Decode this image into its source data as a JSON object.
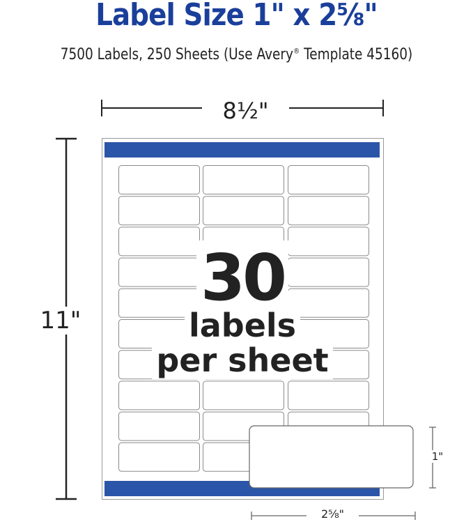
{
  "title": "Label Size 1\" x 2⅝\"",
  "subtitle": {
    "text": "7500 Labels, 250 Sheets (Use Avery",
    "registered": "®",
    "text2": " Template 45160)"
  },
  "sheet": {
    "width_label": "8½\"",
    "height_label": "11\"",
    "rows": 10,
    "columns": 3,
    "accent_color": "#2b55a8"
  },
  "callout": {
    "count": "30",
    "line1": "labels",
    "line2": "per sheet"
  },
  "single_label": {
    "height_label": "1\"",
    "width_label": "2⅝\""
  },
  "colors": {
    "title": "#1a3f9b",
    "bar": "#2b55a8",
    "outline": "#8a8a8a"
  }
}
